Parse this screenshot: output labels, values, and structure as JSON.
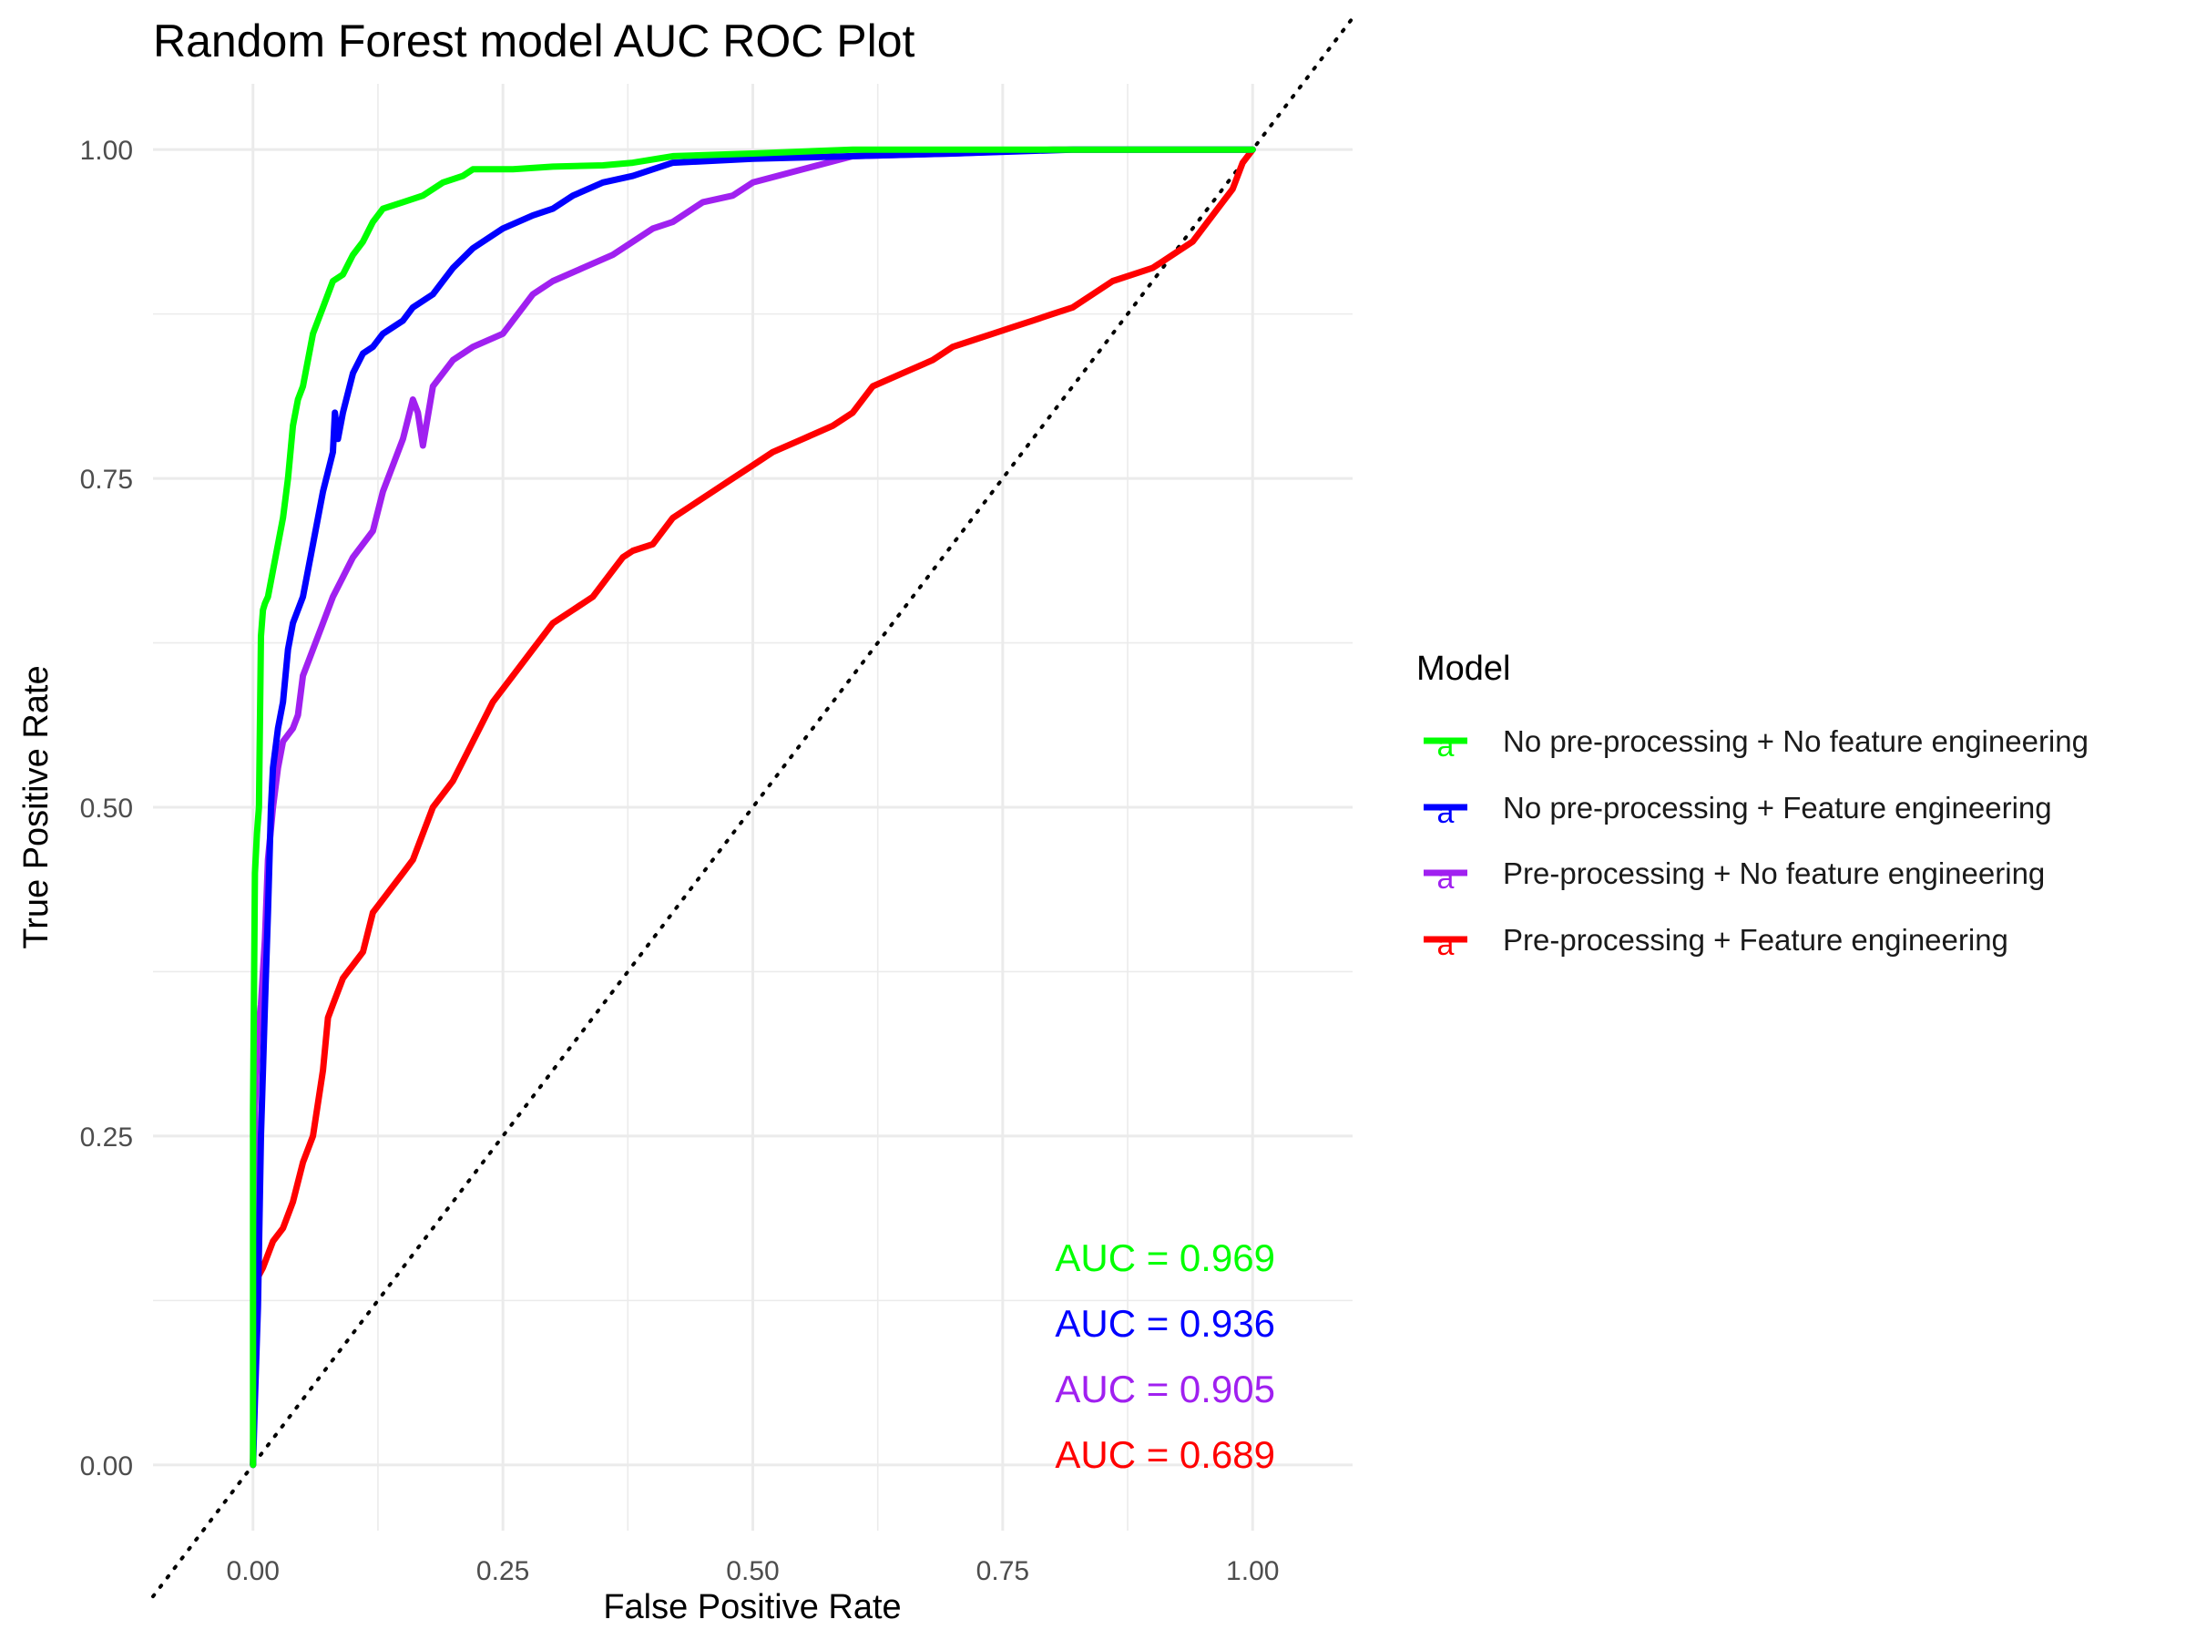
{
  "chart_data": {
    "type": "line",
    "title": "Random Forest model AUC ROC Plot",
    "xlabel": "False Positive Rate",
    "ylabel": "True Positive Rate",
    "xlim": [
      -0.1,
      1.1
    ],
    "ylim": [
      -0.05,
      1.05
    ],
    "x_ticks": [
      "0.00",
      "0.25",
      "0.50",
      "0.75",
      "1.00"
    ],
    "y_ticks": [
      "0.00",
      "0.25",
      "0.50",
      "0.75",
      "1.00"
    ],
    "grid": true,
    "legend": {
      "title": "Model",
      "position": "right"
    },
    "reference_line": {
      "from": [
        0,
        0
      ],
      "to": [
        1,
        1
      ],
      "style": "dotted"
    },
    "series": [
      {
        "name": "No pre-processing + No feature engineering",
        "color": "#00ff00",
        "auc_label": "AUC = 0.969",
        "x": [
          0,
          0,
          0.002,
          0.004,
          0.006,
          0.008,
          0.01,
          0.012,
          0.015,
          0.02,
          0.025,
          0.03,
          0.035,
          0.04,
          0.045,
          0.05,
          0.055,
          0.06,
          0.07,
          0.08,
          0.09,
          0.1,
          0.11,
          0.12,
          0.13,
          0.15,
          0.17,
          0.19,
          0.21,
          0.22,
          0.26,
          0.3,
          0.35,
          0.38,
          0.42,
          0.5,
          0.6,
          0.75,
          0.9,
          1.0
        ],
        "y": [
          0,
          0.27,
          0.45,
          0.48,
          0.5,
          0.63,
          0.65,
          0.655,
          0.66,
          0.68,
          0.7,
          0.72,
          0.75,
          0.79,
          0.81,
          0.82,
          0.84,
          0.86,
          0.88,
          0.9,
          0.905,
          0.92,
          0.93,
          0.945,
          0.955,
          0.96,
          0.965,
          0.975,
          0.98,
          0.985,
          0.985,
          0.987,
          0.988,
          0.99,
          0.995,
          0.997,
          1.0,
          1.0,
          1.0,
          1.0
        ]
      },
      {
        "name": "No pre-processing + Feature engineering",
        "color": "#0000ff",
        "auc_label": "AUC = 0.936",
        "x": [
          0,
          0.002,
          0.005,
          0.008,
          0.012,
          0.015,
          0.018,
          0.02,
          0.025,
          0.03,
          0.035,
          0.04,
          0.05,
          0.055,
          0.06,
          0.065,
          0.07,
          0.08,
          0.082,
          0.085,
          0.09,
          0.1,
          0.11,
          0.12,
          0.13,
          0.15,
          0.16,
          0.18,
          0.19,
          0.2,
          0.22,
          0.25,
          0.28,
          0.3,
          0.32,
          0.35,
          0.38,
          0.42,
          0.5,
          0.6,
          0.7,
          0.82,
          0.9,
          1.0
        ],
        "y": [
          0,
          0.05,
          0.12,
          0.25,
          0.35,
          0.42,
          0.5,
          0.53,
          0.56,
          0.58,
          0.62,
          0.64,
          0.66,
          0.68,
          0.7,
          0.72,
          0.74,
          0.77,
          0.8,
          0.78,
          0.8,
          0.83,
          0.845,
          0.85,
          0.86,
          0.87,
          0.88,
          0.89,
          0.9,
          0.91,
          0.925,
          0.94,
          0.95,
          0.955,
          0.965,
          0.975,
          0.98,
          0.99,
          0.993,
          0.995,
          0.997,
          1.0,
          1.0,
          1.0
        ]
      },
      {
        "name": "Pre-processing + No feature engineering",
        "color": "#a020f0",
        "auc_label": "AUC = 0.905",
        "x": [
          0,
          0.002,
          0.005,
          0.008,
          0.012,
          0.015,
          0.02,
          0.025,
          0.03,
          0.04,
          0.045,
          0.05,
          0.055,
          0.06,
          0.07,
          0.08,
          0.09,
          0.1,
          0.12,
          0.13,
          0.15,
          0.16,
          0.165,
          0.17,
          0.18,
          0.2,
          0.22,
          0.25,
          0.27,
          0.28,
          0.3,
          0.33,
          0.36,
          0.4,
          0.42,
          0.45,
          0.48,
          0.5,
          0.55,
          0.6,
          0.7,
          0.8,
          0.9,
          1.0
        ],
        "y": [
          0,
          0.27,
          0.33,
          0.35,
          0.4,
          0.46,
          0.5,
          0.53,
          0.55,
          0.56,
          0.57,
          0.6,
          0.61,
          0.62,
          0.64,
          0.66,
          0.675,
          0.69,
          0.71,
          0.74,
          0.78,
          0.81,
          0.8,
          0.775,
          0.82,
          0.84,
          0.85,
          0.86,
          0.88,
          0.89,
          0.9,
          0.91,
          0.92,
          0.94,
          0.945,
          0.96,
          0.965,
          0.975,
          0.985,
          0.995,
          0.997,
          1.0,
          1.0,
          1.0
        ]
      },
      {
        "name": "Pre-processing + Feature engineering",
        "color": "#ff0000",
        "auc_label": "AUC = 0.689",
        "x": [
          0,
          0.003,
          0.01,
          0.02,
          0.03,
          0.04,
          0.05,
          0.06,
          0.07,
          0.075,
          0.08,
          0.085,
          0.09,
          0.1,
          0.11,
          0.12,
          0.13,
          0.14,
          0.15,
          0.16,
          0.18,
          0.2,
          0.22,
          0.24,
          0.26,
          0.28,
          0.3,
          0.32,
          0.34,
          0.36,
          0.37,
          0.38,
          0.4,
          0.42,
          0.44,
          0.46,
          0.48,
          0.5,
          0.52,
          0.55,
          0.58,
          0.6,
          0.62,
          0.65,
          0.68,
          0.7,
          0.72,
          0.74,
          0.76,
          0.78,
          0.8,
          0.82,
          0.84,
          0.86,
          0.88,
          0.9,
          0.92,
          0.94,
          0.95,
          0.96,
          0.97,
          0.98,
          0.99,
          1.0
        ],
        "y": [
          0,
          0.14,
          0.15,
          0.17,
          0.18,
          0.2,
          0.23,
          0.25,
          0.3,
          0.34,
          0.35,
          0.36,
          0.37,
          0.38,
          0.39,
          0.42,
          0.43,
          0.44,
          0.45,
          0.46,
          0.5,
          0.52,
          0.55,
          0.58,
          0.6,
          0.62,
          0.64,
          0.65,
          0.66,
          0.68,
          0.69,
          0.695,
          0.7,
          0.72,
          0.73,
          0.74,
          0.75,
          0.76,
          0.77,
          0.78,
          0.79,
          0.8,
          0.82,
          0.83,
          0.84,
          0.85,
          0.855,
          0.86,
          0.865,
          0.87,
          0.875,
          0.88,
          0.89,
          0.9,
          0.905,
          0.91,
          0.92,
          0.93,
          0.94,
          0.95,
          0.96,
          0.97,
          0.99,
          1.0
        ]
      }
    ]
  }
}
